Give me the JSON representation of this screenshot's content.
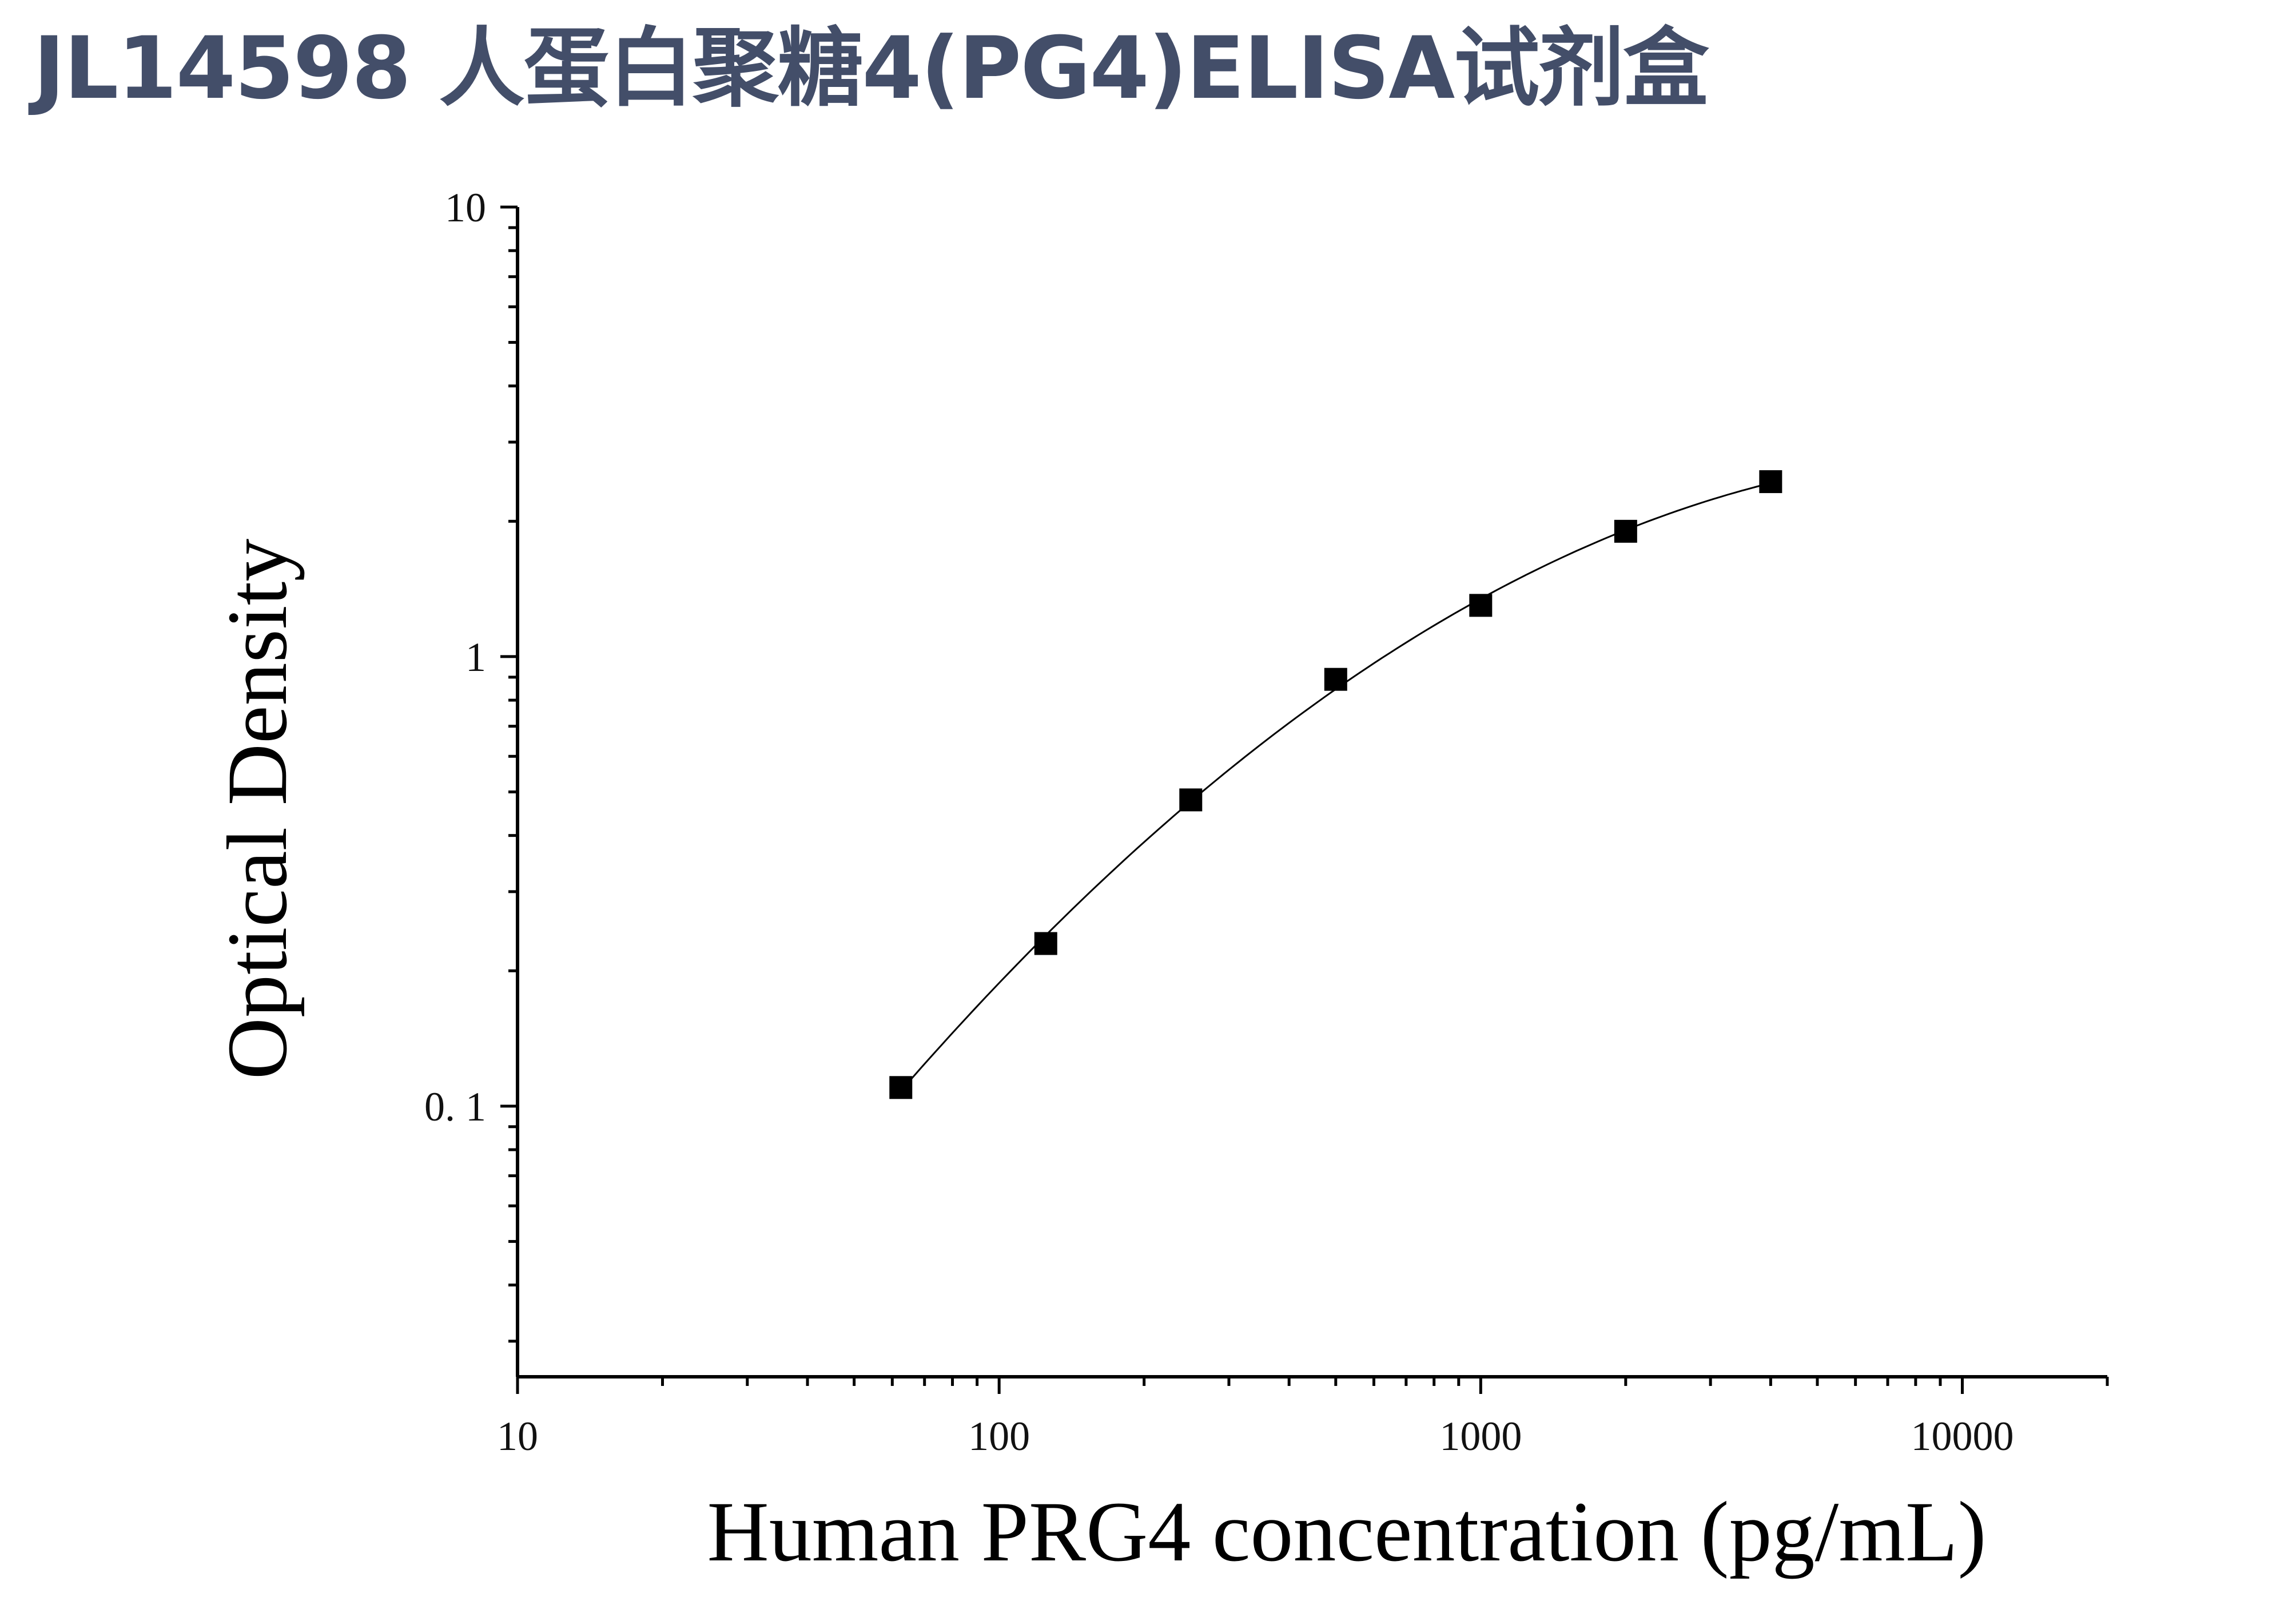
{
  "header": {
    "title": "JL14598 人蛋白聚糖4(PG4)ELISA试剂盒"
  },
  "colors": {
    "title": "#434e69",
    "axis": "#000000",
    "marker": "#000000",
    "curve": "#000000"
  },
  "chart_data": {
    "type": "scatter",
    "title": "",
    "xlabel": "Human PRG4 concentration (pg/mL)",
    "ylabel": "Optical Density",
    "xscale": "log",
    "yscale": "log",
    "xlim": [
      10,
      20000
    ],
    "ylim": [
      0.025,
      10
    ],
    "x_tick_labels": [
      "10",
      "100",
      "1000",
      "10000"
    ],
    "y_tick_labels": [
      "0. 1",
      "1",
      "10"
    ],
    "grid": false,
    "legend": "none",
    "marker": "square",
    "fit_curve": true,
    "series": [
      {
        "x": [
          62.5,
          125,
          250,
          500,
          1000,
          2000,
          4000
        ],
        "y": [
          0.11,
          0.23,
          0.48,
          0.89,
          1.3,
          1.9,
          2.45
        ]
      }
    ]
  }
}
